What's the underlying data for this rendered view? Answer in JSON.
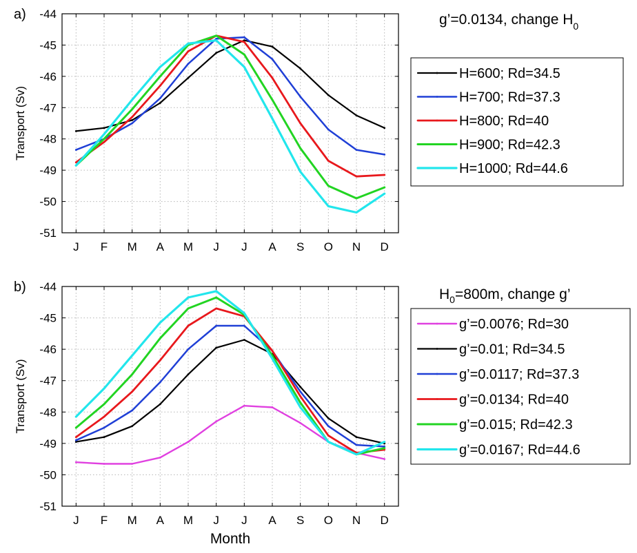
{
  "chart_data": [
    {
      "type": "line",
      "panel_label": "a)",
      "box_title": {
        "main": "g’=0.0134, change H",
        "sub": "0"
      },
      "ylabel": "Transport (Sv)",
      "xlabel": "",
      "ylim": [
        -51,
        -44
      ],
      "yticks": [
        "-44",
        "-45",
        "-46",
        "-47",
        "-48",
        "-49",
        "-50",
        "-51"
      ],
      "ytick_values": [
        -44,
        -45,
        -46,
        -47,
        -48,
        -49,
        -50,
        -51
      ],
      "categories": [
        "J",
        "F",
        "M",
        "A",
        "M",
        "J",
        "J",
        "A",
        "S",
        "O",
        "N",
        "D"
      ],
      "grid": true,
      "legend_position": "right",
      "series": [
        {
          "name": "H=600; Rd=34.5",
          "color": "#000000",
          "values": [
            -47.75,
            -47.65,
            -47.4,
            -46.85,
            -46.05,
            -45.25,
            -44.85,
            -45.05,
            -45.75,
            -46.6,
            -47.25,
            -47.65
          ]
        },
        {
          "name": "H=700; Rd=37.3",
          "color": "#1f3fd6",
          "values": [
            -48.35,
            -48.0,
            -47.5,
            -46.7,
            -45.6,
            -44.8,
            -44.75,
            -45.45,
            -46.65,
            -47.7,
            -48.35,
            -48.5
          ]
        },
        {
          "name": "H=800; Rd=40",
          "color": "#e8181c",
          "values": [
            -48.75,
            -48.1,
            -47.3,
            -46.3,
            -45.2,
            -44.7,
            -44.9,
            -46.05,
            -47.5,
            -48.7,
            -49.2,
            -49.15
          ]
        },
        {
          "name": "H=900; Rd=42.3",
          "color": "#22d422",
          "values": [
            -48.85,
            -48.0,
            -47.05,
            -46.0,
            -45.0,
            -44.7,
            -45.3,
            -46.75,
            -48.3,
            -49.5,
            -49.9,
            -49.55
          ]
        },
        {
          "name": "H=1000; Rd=44.6",
          "color": "#22e6ec",
          "values": [
            -48.85,
            -47.85,
            -46.75,
            -45.7,
            -44.95,
            -44.85,
            -45.7,
            -47.35,
            -49.05,
            -50.15,
            -50.35,
            -49.75
          ]
        }
      ]
    },
    {
      "type": "line",
      "panel_label": "b)",
      "box_title": {
        "main": "=800m, change g’",
        "prefix": "H",
        "sub": "0"
      },
      "ylabel": "Transport (Sv)",
      "xlabel": "Month",
      "ylim": [
        -51,
        -44
      ],
      "yticks": [
        "-44",
        "-45",
        "-46",
        "-47",
        "-48",
        "-49",
        "-50",
        "-51"
      ],
      "ytick_values": [
        -44,
        -45,
        -46,
        -47,
        -48,
        -49,
        -50,
        -51
      ],
      "categories": [
        "J",
        "F",
        "M",
        "A",
        "M",
        "J",
        "J",
        "A",
        "S",
        "O",
        "N",
        "D"
      ],
      "grid": true,
      "legend_position": "right",
      "series": [
        {
          "name": "g’=0.0076; Rd=30",
          "color": "#e040e0",
          "values": [
            -49.6,
            -49.65,
            -49.65,
            -49.45,
            -48.95,
            -48.3,
            -47.8,
            -47.85,
            -48.35,
            -48.95,
            -49.3,
            -49.5
          ]
        },
        {
          "name": "g’=0.01; Rd=34.5",
          "color": "#000000",
          "values": [
            -48.95,
            -48.8,
            -48.45,
            -47.75,
            -46.8,
            -45.95,
            -45.7,
            -46.15,
            -47.2,
            -48.2,
            -48.8,
            -49.0
          ]
        },
        {
          "name": "g’=0.0117; Rd=37.3",
          "color": "#1f3fd6",
          "values": [
            -48.9,
            -48.5,
            -47.95,
            -47.05,
            -46.0,
            -45.25,
            -45.25,
            -46.05,
            -47.35,
            -48.45,
            -49.05,
            -49.1
          ]
        },
        {
          "name": "g’=0.0134; Rd=40",
          "color": "#e8181c",
          "values": [
            -48.8,
            -48.15,
            -47.35,
            -46.35,
            -45.25,
            -44.7,
            -44.95,
            -46.05,
            -47.5,
            -48.75,
            -49.3,
            -49.2
          ]
        },
        {
          "name": "g’=0.015; Rd=42.3",
          "color": "#22d422",
          "values": [
            -48.5,
            -47.75,
            -46.8,
            -45.65,
            -44.7,
            -44.35,
            -44.9,
            -46.2,
            -47.7,
            -48.95,
            -49.35,
            -49.15
          ]
        },
        {
          "name": "g’=0.0167; Rd=44.6",
          "color": "#22e6ec",
          "values": [
            -48.15,
            -47.25,
            -46.2,
            -45.15,
            -44.35,
            -44.15,
            -44.85,
            -46.3,
            -47.85,
            -48.95,
            -49.35,
            -48.95
          ]
        }
      ]
    }
  ]
}
